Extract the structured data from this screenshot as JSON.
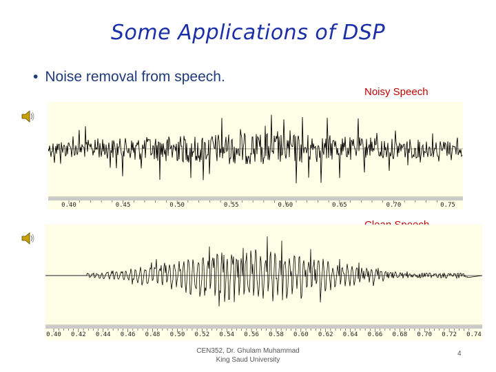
{
  "slide": {
    "title": "Some Applications of DSP",
    "bullet": "Noise removal from speech.",
    "bullet_marker": "•"
  },
  "noisy": {
    "label": "Noisy Speech",
    "ticks": [
      "0.40",
      "0.45",
      "0.50",
      "0.55",
      "0.60",
      "0.65",
      "0.70",
      "0.75"
    ]
  },
  "clean": {
    "label": "Clean Speech",
    "ticks": [
      "0.40",
      "0.42",
      "0.44",
      "0.46",
      "0.48",
      "0.50",
      "0.52",
      "0.54",
      "0.56",
      "0.58",
      "0.60",
      "0.62",
      "0.64",
      "0.66",
      "0.68",
      "0.70",
      "0.72",
      "0.74"
    ]
  },
  "footer": {
    "line1": "CEN352, Dr. Ghulam Muhammad",
    "line2": "King Saud University",
    "page": "4"
  },
  "colors": {
    "title": "#1a2fa8",
    "label": "#c00000",
    "panel_bg": "#ffffe8"
  }
}
